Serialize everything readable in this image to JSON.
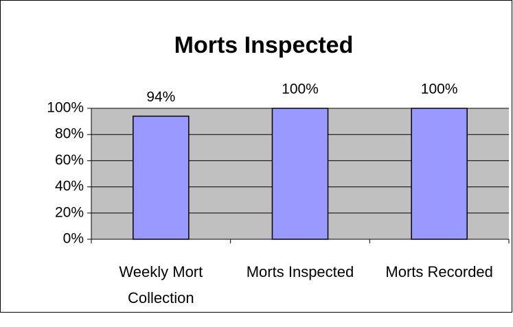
{
  "chart_data": {
    "type": "bar",
    "title": "Morts Inspected",
    "categories": [
      "Weekly Mort Collection",
      "Morts Inspected",
      "Morts Recorded"
    ],
    "values": [
      94,
      100,
      100
    ],
    "value_labels": [
      "94%",
      "100%",
      "100%"
    ],
    "color": "#9999ff",
    "background": "#c0c0c0",
    "ylim": [
      0,
      100
    ],
    "yticks": [
      {
        "value": 0,
        "label": "0%"
      },
      {
        "value": 20,
        "label": "20%"
      },
      {
        "value": 40,
        "label": "40%"
      },
      {
        "value": 60,
        "label": "60%"
      },
      {
        "value": 80,
        "label": "80%"
      },
      {
        "value": 100,
        "label": "100%"
      }
    ],
    "grid": true
  }
}
